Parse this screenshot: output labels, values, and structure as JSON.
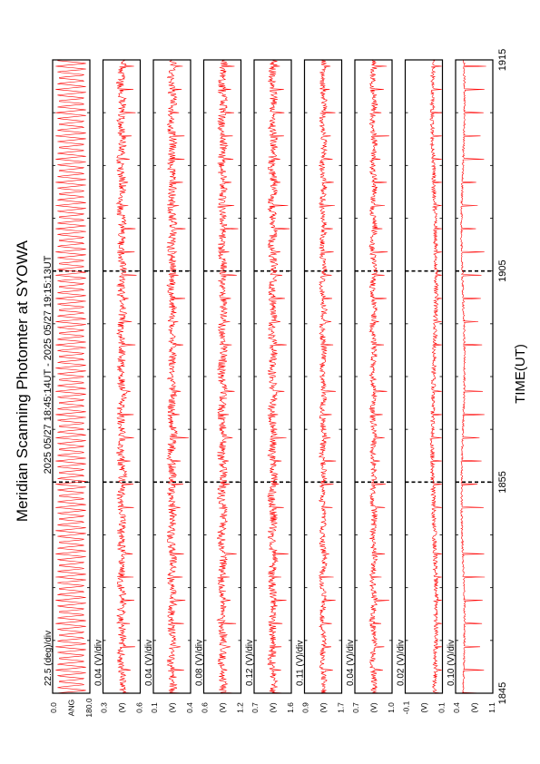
{
  "chart_data": {
    "type": "line",
    "orientation": "rotated-90-ccw",
    "title": "Meridian Scanning Photomter at SYOWA",
    "subtitle": "2025 05/27 18:45:14UT - 2025 05/27 19:15:13UT",
    "xlabel": "TIME(UT)",
    "x_ticks": [
      "1845",
      "1855",
      "1905",
      "1915"
    ],
    "xlim": [
      0,
      30
    ],
    "grid": "dashed vertical lines every 10 min",
    "line_color": "#ff0000",
    "panels": [
      {
        "scale": "22.5 (deg)/div",
        "ylabel": "ANG",
        "yticks": [
          "0.0",
          "180.0"
        ],
        "ylim": [
          0,
          180
        ],
        "pattern": "sweep"
      },
      {
        "scale": "0.04 (V)/div",
        "ylabel": "(V)",
        "ylabel_suffix": "",
        "yticks": [
          "0.3",
          "0.6"
        ],
        "ylim": [
          0.3,
          0.6
        ],
        "pattern": "noisy"
      },
      {
        "scale": "0.04 (V)/div",
        "ylabel": "(V)",
        "yticks": [
          "0.1",
          "0.4"
        ],
        "ylim": [
          0.1,
          0.4
        ],
        "pattern": "noisy"
      },
      {
        "scale": "0.08 (V)/div",
        "ylabel": "(V)",
        "yticks": [
          "0.6",
          "1.2"
        ],
        "ylim": [
          0.6,
          1.2
        ],
        "pattern": "noisy"
      },
      {
        "scale": "0.12 (V)/div",
        "ylabel": "(V)",
        "yticks": [
          "0.7",
          "1.6"
        ],
        "ylim": [
          0.7,
          1.6
        ],
        "pattern": "noisy"
      },
      {
        "scale": "0.11 (V)/div",
        "ylabel": "(V)",
        "yticks": [
          "0.9",
          "1.7"
        ],
        "ylim": [
          0.9,
          1.7
        ],
        "pattern": "mid"
      },
      {
        "scale": "0.04 (V)/div",
        "ylabel": "(V)",
        "yticks": [
          "0.7",
          "1.0"
        ],
        "ylim": [
          0.7,
          1.0
        ],
        "pattern": "mid"
      },
      {
        "scale": "0.02 (V)/div",
        "ylabel": "(V)",
        "yticks": [
          "-0.1",
          "0.1"
        ],
        "ylim": [
          -0.1,
          0.1
        ],
        "pattern": "quiet"
      },
      {
        "scale": "0.10 (V)/div",
        "ylabel": "(V)",
        "yticks": [
          "0.4",
          "1.1"
        ],
        "ylim": [
          0.4,
          1.1
        ],
        "pattern": "spiky"
      }
    ]
  }
}
